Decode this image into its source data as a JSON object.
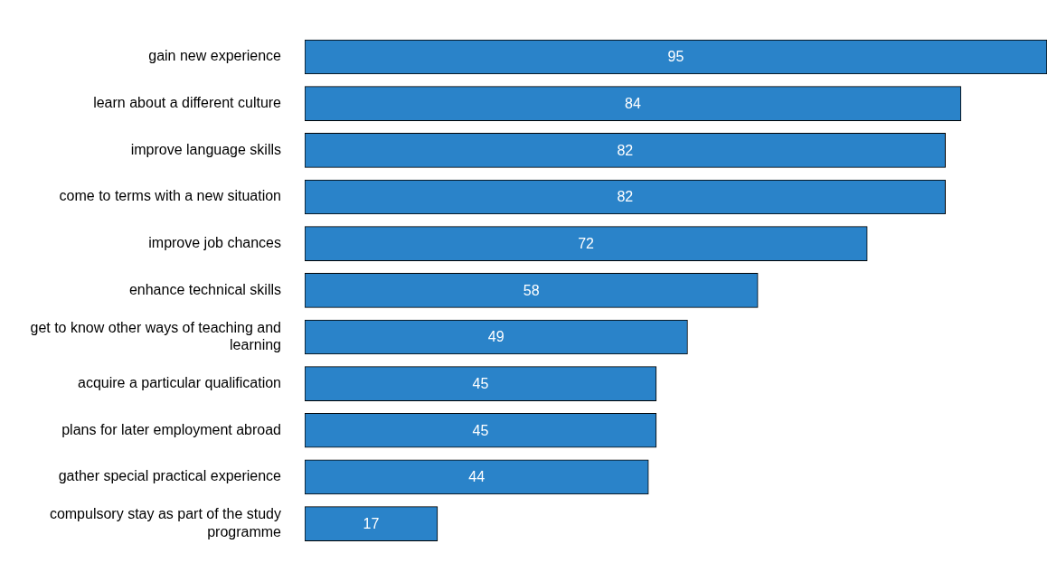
{
  "chart_data": {
    "type": "bar",
    "orientation": "horizontal",
    "data_labels": true,
    "categories": [
      "gain new experience",
      "learn about a different culture",
      "improve language skills",
      "come to terms with a new situation",
      "improve job chances",
      "enhance technical skills",
      "get to know other ways of teaching and learning",
      "acquire a particular qualification",
      "plans for later employment abroad",
      "gather special practical experience",
      "compulsory stay as part of the study programme"
    ],
    "values": [
      95,
      84,
      82,
      82,
      72,
      58,
      49,
      45,
      45,
      44,
      17
    ],
    "color": "#2a83c9"
  }
}
